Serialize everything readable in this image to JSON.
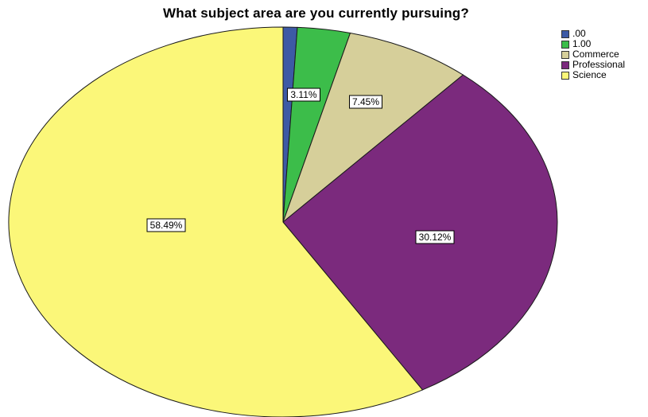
{
  "chart_data": {
    "type": "pie",
    "title": "What subject area are you currently pursuing?",
    "slices": [
      {
        "label": ".00",
        "value": 0.83,
        "color": "#3d5aa5"
      },
      {
        "label": "1.00",
        "value": 3.11,
        "color": "#3cbd4a",
        "data_label": "3.11%"
      },
      {
        "label": "Commerce",
        "value": 7.45,
        "color": "#d6cf9a",
        "data_label": "7.45%"
      },
      {
        "label": "Professional",
        "value": 30.12,
        "color": "#7b2a7d",
        "data_label": "30.12%"
      },
      {
        "label": "Science",
        "value": 58.49,
        "color": "#fbf779",
        "data_label": "58.49%"
      }
    ],
    "start": "12 o'clock",
    "direction": "clockwise",
    "legend_position": "top-right"
  }
}
